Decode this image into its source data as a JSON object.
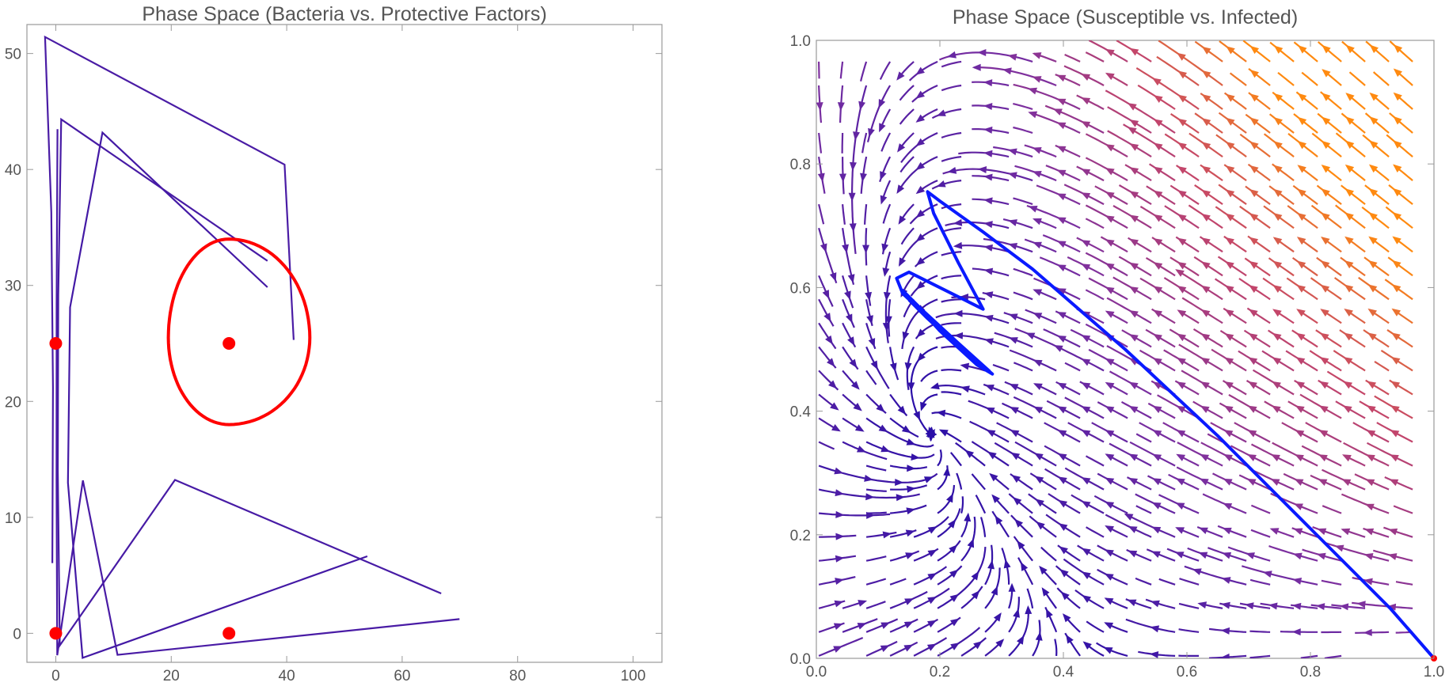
{
  "chart_data": [
    {
      "type": "streamplot",
      "title": "Phase Space (Bacteria vs. Protective Factors)",
      "xlabel": "",
      "ylabel": "",
      "xlim": [
        -5,
        105
      ],
      "ylim": [
        -2.5,
        52.5
      ],
      "x_ticks": [
        0,
        20,
        40,
        60,
        80,
        100
      ],
      "y_ticks": [
        0,
        10,
        20,
        30,
        40,
        50
      ],
      "grid": false,
      "colormap": [
        "#2a0fa8",
        "#7b2fa0",
        "#c4466a",
        "#ff8a10"
      ],
      "equilibrium_points": [
        {
          "x": 0,
          "y": 0
        },
        {
          "x": 0,
          "y": 25
        },
        {
          "x": 30,
          "y": 0
        },
        {
          "x": 30,
          "y": 25
        }
      ],
      "point_color": "#ff0000",
      "highlighted_orbit": {
        "color": "#ff0000",
        "center": [
          30,
          25.5
        ],
        "x_range": [
          19.5,
          44
        ],
        "y_range": [
          18,
          34
        ]
      }
    },
    {
      "type": "streamplot",
      "title": "Phase Space (Susceptible vs. Infected)",
      "xlabel": "",
      "ylabel": "",
      "xlim": [
        0,
        1
      ],
      "ylim": [
        0,
        1
      ],
      "x_ticks": [
        "0.0",
        "0.2",
        "0.4",
        "0.6",
        "0.8",
        "1.0"
      ],
      "y_ticks": [
        "0.0",
        "0.2",
        "0.4",
        "0.6",
        "0.8",
        "1.0"
      ],
      "grid": false,
      "colormap": [
        "#2a0fa8",
        "#7b2fa0",
        "#c4466a",
        "#ff8a10"
      ],
      "trajectory": {
        "color": "#0a1aff",
        "points": [
          [
            1.0,
            0.0
          ],
          [
            0.93,
            0.08
          ],
          [
            0.8,
            0.21
          ],
          [
            0.65,
            0.36
          ],
          [
            0.5,
            0.5
          ],
          [
            0.35,
            0.63
          ],
          [
            0.27,
            0.69
          ],
          [
            0.2,
            0.74
          ],
          [
            0.18,
            0.755
          ],
          [
            0.19,
            0.72
          ],
          [
            0.23,
            0.64
          ],
          [
            0.27,
            0.565
          ],
          [
            0.25,
            0.575
          ],
          [
            0.2,
            0.6
          ],
          [
            0.15,
            0.625
          ],
          [
            0.13,
            0.615
          ],
          [
            0.14,
            0.59
          ],
          [
            0.2,
            0.535
          ],
          [
            0.25,
            0.49
          ],
          [
            0.285,
            0.46
          ],
          [
            0.26,
            0.475
          ],
          [
            0.2,
            0.53
          ],
          [
            0.15,
            0.585
          ],
          [
            0.14,
            0.595
          ],
          [
            0.17,
            0.565
          ],
          [
            0.23,
            0.51
          ],
          [
            0.28,
            0.465
          ],
          [
            0.24,
            0.495
          ],
          [
            0.18,
            0.55
          ],
          [
            0.15,
            0.58
          ]
        ]
      },
      "equilibrium_points": [
        {
          "x": 1.0,
          "y": 0.0
        }
      ],
      "point_color": "#ff0000"
    }
  ]
}
